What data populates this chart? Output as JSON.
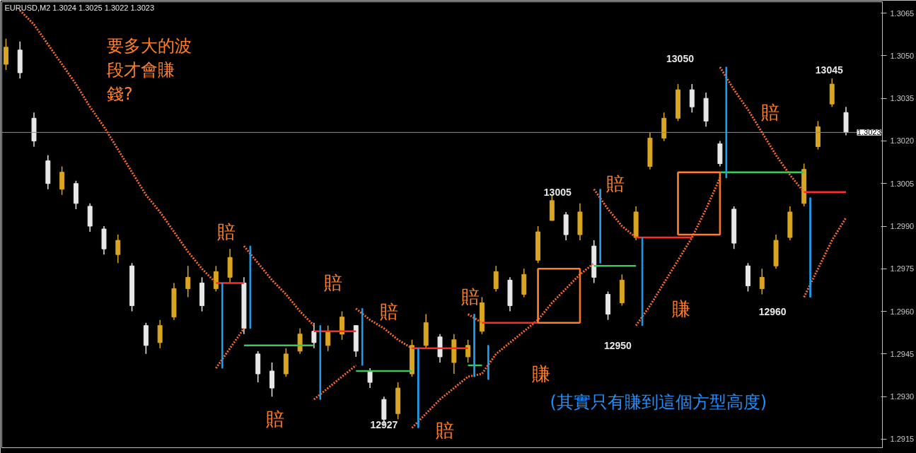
{
  "chart_data": {
    "type": "candlestick",
    "title": "EURUSD,M2  1.3024 1.3025 1.3022 1.3023",
    "categories": [
      null,
      null,
      null,
      null,
      null,
      null,
      null,
      null,
      null,
      null,
      null,
      null,
      null,
      null,
      null,
      null,
      null,
      null,
      null,
      null,
      null,
      null,
      null,
      null,
      null,
      null,
      null,
      null,
      null,
      null,
      null,
      null,
      null,
      null,
      null,
      null,
      null,
      null,
      null,
      null,
      null,
      null,
      null,
      null,
      null,
      null,
      null,
      null,
      null,
      null,
      null,
      null,
      null,
      null,
      null,
      null,
      null,
      null,
      null,
      null,
      null
    ],
    "ohlc": [
      [
        1.3047,
        1.3056,
        1.3045,
        1.3053
      ],
      [
        1.3052,
        1.3055,
        1.3042,
        1.3044
      ],
      [
        1.3028,
        1.303,
        1.3018,
        1.302
      ],
      [
        1.3013,
        1.3015,
        1.3003,
        1.3005
      ],
      [
        1.3003,
        1.3011,
        1.3001,
        1.3009
      ],
      [
        1.3005,
        1.3006,
        1.2996,
        1.2998
      ],
      [
        1.2997,
        1.2998,
        1.2988,
        1.299
      ],
      [
        1.2989,
        1.299,
        1.298,
        1.2982
      ],
      [
        1.298,
        1.2987,
        1.2977,
        1.2985
      ],
      [
        1.2976,
        1.2977,
        1.296,
        1.2962
      ],
      [
        1.2955,
        1.2956,
        1.2945,
        1.2948
      ],
      [
        1.2949,
        1.2957,
        1.2947,
        1.2955
      ],
      [
        1.2958,
        1.297,
        1.2957,
        1.2968
      ],
      [
        1.2968,
        1.2976,
        1.2965,
        1.2972
      ],
      [
        1.297,
        1.2972,
        1.296,
        1.2962
      ],
      [
        1.2968,
        1.2976,
        1.2967,
        1.2974
      ],
      [
        1.2972,
        1.2982,
        1.297,
        1.2979
      ],
      [
        1.297,
        1.2972,
        1.2952,
        1.2954
      ],
      [
        1.2945,
        1.2946,
        1.2935,
        1.2938
      ],
      [
        1.2939,
        1.2942,
        1.293,
        1.2933
      ],
      [
        1.2938,
        1.2947,
        1.2937,
        1.2945
      ],
      [
        1.2946,
        1.2954,
        1.2945,
        1.2952
      ],
      [
        1.2953,
        1.2956,
        1.2947,
        1.2949
      ],
      [
        1.2948,
        1.2955,
        1.2946,
        1.2953
      ],
      [
        1.2952,
        1.296,
        1.295,
        1.2958
      ],
      [
        1.2955,
        1.2955,
        1.2944,
        1.2946
      ],
      [
        1.2939,
        1.294,
        1.2933,
        1.2935
      ],
      [
        1.2929,
        1.293,
        1.292,
        1.2922
      ],
      [
        1.2924,
        1.2935,
        1.2922,
        1.2933
      ],
      [
        1.2938,
        1.295,
        1.2937,
        1.2948
      ],
      [
        1.2948,
        1.2959,
        1.2947,
        1.2956
      ],
      [
        1.2951,
        1.2952,
        1.2942,
        1.2944
      ],
      [
        1.2942,
        1.2952,
        1.2938,
        1.295
      ],
      [
        1.2944,
        1.295,
        1.2942,
        1.2948
      ],
      [
        1.2953,
        1.2965,
        1.2952,
        1.2963
      ],
      [
        1.2968,
        1.2976,
        1.2967,
        1.2974
      ],
      [
        1.2971,
        1.2972,
        1.296,
        1.2962
      ],
      [
        1.2966,
        1.2975,
        1.2965,
        1.2973
      ],
      [
        1.2978,
        1.299,
        1.2977,
        1.2988
      ],
      [
        1.2992,
        1.3001,
        1.2992,
        1.2999
      ],
      [
        1.2994,
        1.2995,
        1.2985,
        1.2987
      ],
      [
        1.2987,
        1.2998,
        1.2985,
        1.2995
      ],
      [
        1.2983,
        1.2985,
        1.297,
        1.2972
      ],
      [
        1.2966,
        1.2967,
        1.2957,
        1.2959
      ],
      [
        1.2963,
        1.2973,
        1.2962,
        1.2971
      ],
      [
        1.2986,
        1.2997,
        1.2985,
        1.2995
      ],
      [
        1.3011,
        1.3023,
        1.301,
        1.3021
      ],
      [
        1.3021,
        1.303,
        1.302,
        1.3028
      ],
      [
        1.3028,
        1.304,
        1.3027,
        1.3038
      ],
      [
        1.3038,
        1.304,
        1.303,
        1.3032
      ],
      [
        1.3035,
        1.3037,
        1.3025,
        1.3027
      ],
      [
        1.3019,
        1.302,
        1.3011,
        1.3012
      ],
      [
        1.2996,
        1.2997,
        1.2982,
        1.2984
      ],
      [
        1.2976,
        1.2977,
        1.2967,
        1.2969
      ],
      [
        1.2968,
        1.2975,
        1.2966,
        1.2972
      ],
      [
        1.2976,
        1.2987,
        1.2975,
        1.2985
      ],
      [
        1.2986,
        1.2997,
        1.2985,
        1.2995
      ],
      [
        1.2998,
        1.3012,
        1.2997,
        1.301
      ],
      [
        1.3018,
        1.3027,
        1.3017,
        1.3025
      ],
      [
        1.3033,
        1.3042,
        1.3032,
        1.304
      ],
      [
        1.303,
        1.3032,
        1.3022,
        1.3023
      ]
    ],
    "colors": [
      "#daa520",
      "#e8e8e8",
      "#e8e8e8",
      "#e8e8e8",
      "#daa520",
      "#e8e8e8",
      "#e8e8e8",
      "#e8e8e8",
      "#daa520",
      "#e8e8e8",
      "#e8e8e8",
      "#daa520",
      "#daa520",
      "#daa520",
      "#e8e8e8",
      "#daa520",
      "#daa520",
      "#e8e8e8",
      "#e8e8e8",
      "#e8e8e8",
      "#daa520",
      "#daa520",
      "#e8e8e8",
      "#daa520",
      "#daa520",
      "#e8e8e8",
      "#e8e8e8",
      "#e8e8e8",
      "#daa520",
      "#daa520",
      "#daa520",
      "#e8e8e8",
      "#daa520",
      "#daa520",
      "#daa520",
      "#daa520",
      "#e8e8e8",
      "#daa520",
      "#daa520",
      "#daa520",
      "#e8e8e8",
      "#daa520",
      "#e8e8e8",
      "#e8e8e8",
      "#daa520",
      "#daa520",
      "#daa520",
      "#daa520",
      "#daa520",
      "#e8e8e8",
      "#e8e8e8",
      "#e8e8e8",
      "#e8e8e8",
      "#e8e8e8",
      "#daa520",
      "#daa520",
      "#daa520",
      "#daa520",
      "#daa520",
      "#daa520",
      "#e8e8e8"
    ],
    "series": [
      {
        "type": "line",
        "color": "#ff6a2a",
        "line_style": "dotted",
        "values": [
          null,
          1.3066,
          1.3061,
          1.3054,
          1.3047,
          1.304,
          1.3032,
          1.3025,
          1.3017,
          1.3009,
          1.3001,
          1.2995,
          1.2988,
          1.2981,
          1.2975,
          1.297,
          null,
          1.2983,
          1.2977,
          1.2971,
          1.2966,
          1.296,
          1.2955,
          null,
          null,
          1.2961,
          1.2957,
          1.2954,
          1.295,
          1.2947,
          null,
          null,
          null,
          1.2959,
          1.2956,
          null,
          null,
          null,
          null,
          null,
          null,
          null,
          1.3003,
          1.2996,
          1.299,
          1.2986,
          null,
          null,
          null,
          null,
          null,
          1.3046,
          1.3038,
          1.3031,
          1.3023,
          1.3015,
          1.3008,
          1.3002,
          null,
          null,
          null
        ]
      },
      {
        "type": "line",
        "color": "#ff6a2a",
        "line_style": "dotted",
        "values": [
          null,
          null,
          null,
          null,
          null,
          null,
          null,
          null,
          null,
          null,
          null,
          null,
          null,
          null,
          null,
          1.294,
          1.2947,
          1.2954,
          null,
          null,
          null,
          null,
          1.2929,
          1.2933,
          1.2937,
          1.2941,
          null,
          null,
          null,
          1.2919,
          1.2924,
          1.2929,
          1.2933,
          1.2937,
          1.2938,
          1.2945,
          1.2949,
          1.2953,
          1.2957,
          1.2963,
          1.2968,
          1.2973,
          1.2977,
          null,
          null,
          1.2955,
          1.2962,
          1.297,
          1.2978,
          1.2986,
          1.2996,
          1.3007,
          null,
          null,
          null,
          null,
          null,
          1.2965,
          1.2975,
          1.2985,
          1.2993
        ]
      },
      {
        "type": "bar",
        "color": "#1ea0f0",
        "base": [
          null,
          null,
          null,
          null,
          null,
          null,
          null,
          null,
          null,
          null,
          null,
          null,
          null,
          null,
          null,
          1.294,
          null,
          1.2954,
          null,
          null,
          null,
          null,
          1.2929,
          null,
          null,
          1.2941,
          null,
          null,
          null,
          1.2919,
          null,
          null,
          null,
          1.2937,
          1.2936,
          null,
          null,
          null,
          null,
          null,
          null,
          null,
          1.2977,
          null,
          null,
          1.2955,
          null,
          null,
          null,
          null,
          null,
          1.3007,
          null,
          null,
          null,
          null,
          null,
          1.2965,
          null,
          null,
          null
        ],
        "values": [
          null,
          null,
          null,
          null,
          null,
          null,
          null,
          null,
          null,
          null,
          null,
          null,
          null,
          null,
          null,
          0.003,
          null,
          0.0029,
          null,
          null,
          null,
          null,
          0.0026,
          null,
          null,
          0.002,
          null,
          null,
          null,
          0.0028,
          null,
          null,
          null,
          0.0022,
          0.0012,
          null,
          null,
          null,
          null,
          null,
          null,
          null,
          0.0026,
          null,
          null,
          0.0031,
          null,
          null,
          null,
          null,
          null,
          0.0039,
          null,
          null,
          null,
          null,
          null,
          0.0035,
          null,
          null,
          null
        ]
      },
      {
        "type": "line",
        "color": "#ff2a2a",
        "values": [
          null,
          null,
          null,
          null,
          null,
          null,
          null,
          null,
          null,
          null,
          null,
          null,
          null,
          null,
          null,
          1.297,
          1.297,
          1.297,
          null,
          null,
          null,
          null,
          1.2953,
          1.2953,
          1.2953,
          1.2953,
          null,
          null,
          null,
          1.2947,
          1.2947,
          1.2947,
          1.2947,
          1.2947,
          null,
          null,
          null,
          null,
          null,
          null,
          null,
          null,
          null,
          null,
          null,
          1.2986,
          1.2986,
          1.2986,
          1.2986,
          1.2986,
          null,
          null,
          null,
          null,
          null,
          null,
          null,
          1.3002,
          1.3002,
          1.3002,
          1.3002
        ]
      },
      {
        "type": "line",
        "color": "#ff2a2a",
        "values": [
          null,
          null,
          null,
          null,
          null,
          null,
          null,
          null,
          null,
          null,
          null,
          null,
          null,
          null,
          null,
          null,
          null,
          null,
          null,
          null,
          null,
          null,
          null,
          null,
          null,
          null,
          null,
          null,
          null,
          null,
          null,
          null,
          null,
          null,
          1.2956,
          1.2956,
          1.2956,
          1.2956,
          1.2956,
          null,
          null,
          null,
          null,
          null,
          null,
          null,
          null,
          null,
          null,
          null,
          null,
          null,
          null,
          null,
          null,
          null,
          null,
          null,
          null,
          null,
          null
        ]
      },
      {
        "type": "line",
        "color": "#3cc85a",
        "values": [
          null,
          null,
          null,
          null,
          null,
          null,
          null,
          null,
          null,
          null,
          null,
          null,
          null,
          null,
          null,
          null,
          null,
          1.2948,
          1.2948,
          1.2948,
          1.2948,
          1.2948,
          1.2948,
          null,
          null,
          1.2939,
          1.2939,
          1.2939,
          1.2939,
          1.2939,
          null,
          null,
          null,
          1.2941,
          1.2941,
          null,
          null,
          null,
          null,
          null,
          null,
          null,
          1.2976,
          1.2976,
          1.2976,
          1.2976,
          null,
          null,
          null,
          null,
          null,
          1.3009,
          1.3009,
          1.3009,
          1.3009,
          1.3009,
          1.3009,
          1.3009,
          null,
          null,
          null
        ]
      },
      {
        "type": "line",
        "color": "#ff7f27",
        "values": [
          null,
          null,
          null,
          null,
          null,
          null,
          null,
          null,
          null,
          null,
          null,
          null,
          null,
          null,
          null,
          null,
          null,
          null,
          null,
          null,
          null,
          null,
          null,
          null,
          null,
          null,
          null,
          null,
          null,
          null,
          null,
          null,
          null,
          null,
          null,
          null,
          null,
          null,
          1.2975,
          1.2975,
          1.2975,
          1.2975,
          null,
          null,
          null,
          null,
          null,
          null,
          1.3009,
          1.3009,
          1.3009,
          1.3009,
          null,
          null,
          null,
          null,
          null,
          null,
          null,
          null,
          null
        ]
      },
      {
        "type": "line",
        "color": "#ff7f27",
        "values": [
          null,
          null,
          null,
          null,
          null,
          null,
          null,
          null,
          null,
          null,
          null,
          null,
          null,
          null,
          null,
          null,
          null,
          null,
          null,
          null,
          null,
          null,
          null,
          null,
          null,
          null,
          null,
          null,
          null,
          null,
          null,
          null,
          null,
          null,
          null,
          null,
          null,
          null,
          1.2956,
          1.2956,
          1.2956,
          1.2956,
          null,
          null,
          null,
          null,
          null,
          null,
          1.2987,
          1.2987,
          1.2987,
          1.2987,
          null,
          null,
          null,
          null,
          null,
          null,
          null,
          null,
          null
        ]
      },
      {
        "type": "bar",
        "color": "#ff7f27",
        "base": [
          null,
          null,
          null,
          null,
          null,
          null,
          null,
          null,
          null,
          null,
          null,
          null,
          null,
          null,
          null,
          null,
          null,
          null,
          null,
          null,
          null,
          null,
          null,
          null,
          null,
          null,
          null,
          null,
          null,
          null,
          null,
          null,
          null,
          null,
          null,
          null,
          null,
          null,
          1.2956,
          null,
          null,
          1.2956,
          null,
          null,
          null,
          null,
          null,
          null,
          1.2987,
          null,
          null,
          1.2987,
          null,
          null,
          null,
          null,
          null,
          null,
          null,
          null,
          null
        ],
        "values": [
          null,
          null,
          null,
          null,
          null,
          null,
          null,
          null,
          null,
          null,
          null,
          null,
          null,
          null,
          null,
          null,
          null,
          null,
          null,
          null,
          null,
          null,
          null,
          null,
          null,
          null,
          null,
          null,
          null,
          null,
          null,
          null,
          null,
          null,
          null,
          null,
          null,
          null,
          0.0019,
          null,
          null,
          0.0019,
          null,
          null,
          null,
          null,
          null,
          null,
          0.0022,
          null,
          null,
          0.0022,
          null,
          null,
          null,
          null,
          null,
          null,
          null,
          null,
          null
        ]
      }
    ],
    "ylim": [
      1.2912,
      1.3069
    ],
    "yticks": [
      {
        "value": 1.2915,
        "label": "1.2915"
      },
      {
        "value": 1.293,
        "label": "1.2930"
      },
      {
        "value": 1.2945,
        "label": "1.2945"
      },
      {
        "value": 1.296,
        "label": "1.2960"
      },
      {
        "value": 1.2975,
        "label": "1.2975"
      },
      {
        "value": 1.299,
        "label": "1.2990"
      },
      {
        "value": 1.3005,
        "label": "1.3005"
      },
      {
        "value": 1.302,
        "label": "1.3020"
      },
      {
        "value": 1.3035,
        "label": "1.3035"
      },
      {
        "value": 1.305,
        "label": "1.3050"
      },
      {
        "value": 1.3065,
        "label": "1.3065"
      }
    ],
    "tick_labels": "y",
    "ref_lines": [
      {
        "axis": "y",
        "value": 1.3023,
        "label": "1.3023",
        "color": "#8090a8"
      }
    ],
    "annotations": [
      "要多大的波段才會賺錢?",
      "賠",
      "賠",
      "賠",
      "賠",
      "賠",
      "賠",
      "賠",
      "賠",
      "賺",
      "賺",
      "(其實只有賺到這個方型高度)",
      "13005",
      "12927",
      "12950",
      "13050",
      "12960",
      "13045"
    ]
  }
}
